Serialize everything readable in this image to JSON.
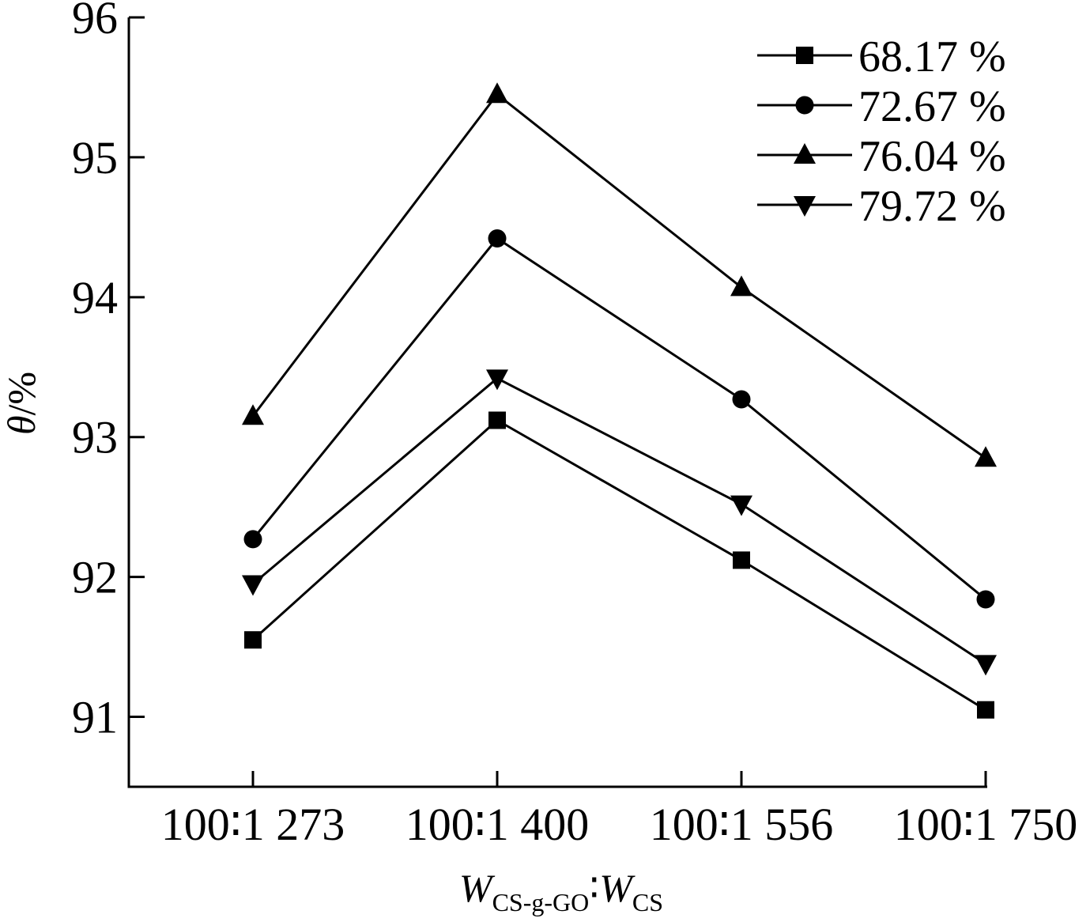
{
  "chart_data": {
    "type": "line",
    "categories": [
      "100∶1 273",
      "100∶1 400",
      "100∶1 556",
      "100∶1 750"
    ],
    "xlabel": {
      "main1": "W",
      "sub1": "CS-g-GO",
      "separator": "∶",
      "main2": "W",
      "sub2": "CS"
    },
    "ylabel": {
      "symbol": "θ",
      "unit": "/%"
    },
    "ylim": [
      90.5,
      96
    ],
    "yticks": [
      "91",
      "92",
      "93",
      "94",
      "95",
      "96"
    ],
    "legend_position": "top-right",
    "grid": false,
    "series": [
      {
        "name": "68.17 %",
        "marker": "square",
        "values": [
          91.55,
          93.12,
          92.12,
          91.05
        ]
      },
      {
        "name": "72.67 %",
        "marker": "circle",
        "values": [
          92.27,
          94.42,
          93.27,
          91.84
        ]
      },
      {
        "name": "76.04 %",
        "marker": "triangle-up",
        "values": [
          93.15,
          95.45,
          94.07,
          92.85
        ]
      },
      {
        "name": "79.72 %",
        "marker": "triangle-down",
        "values": [
          91.95,
          93.42,
          92.52,
          91.38
        ]
      }
    ]
  }
}
